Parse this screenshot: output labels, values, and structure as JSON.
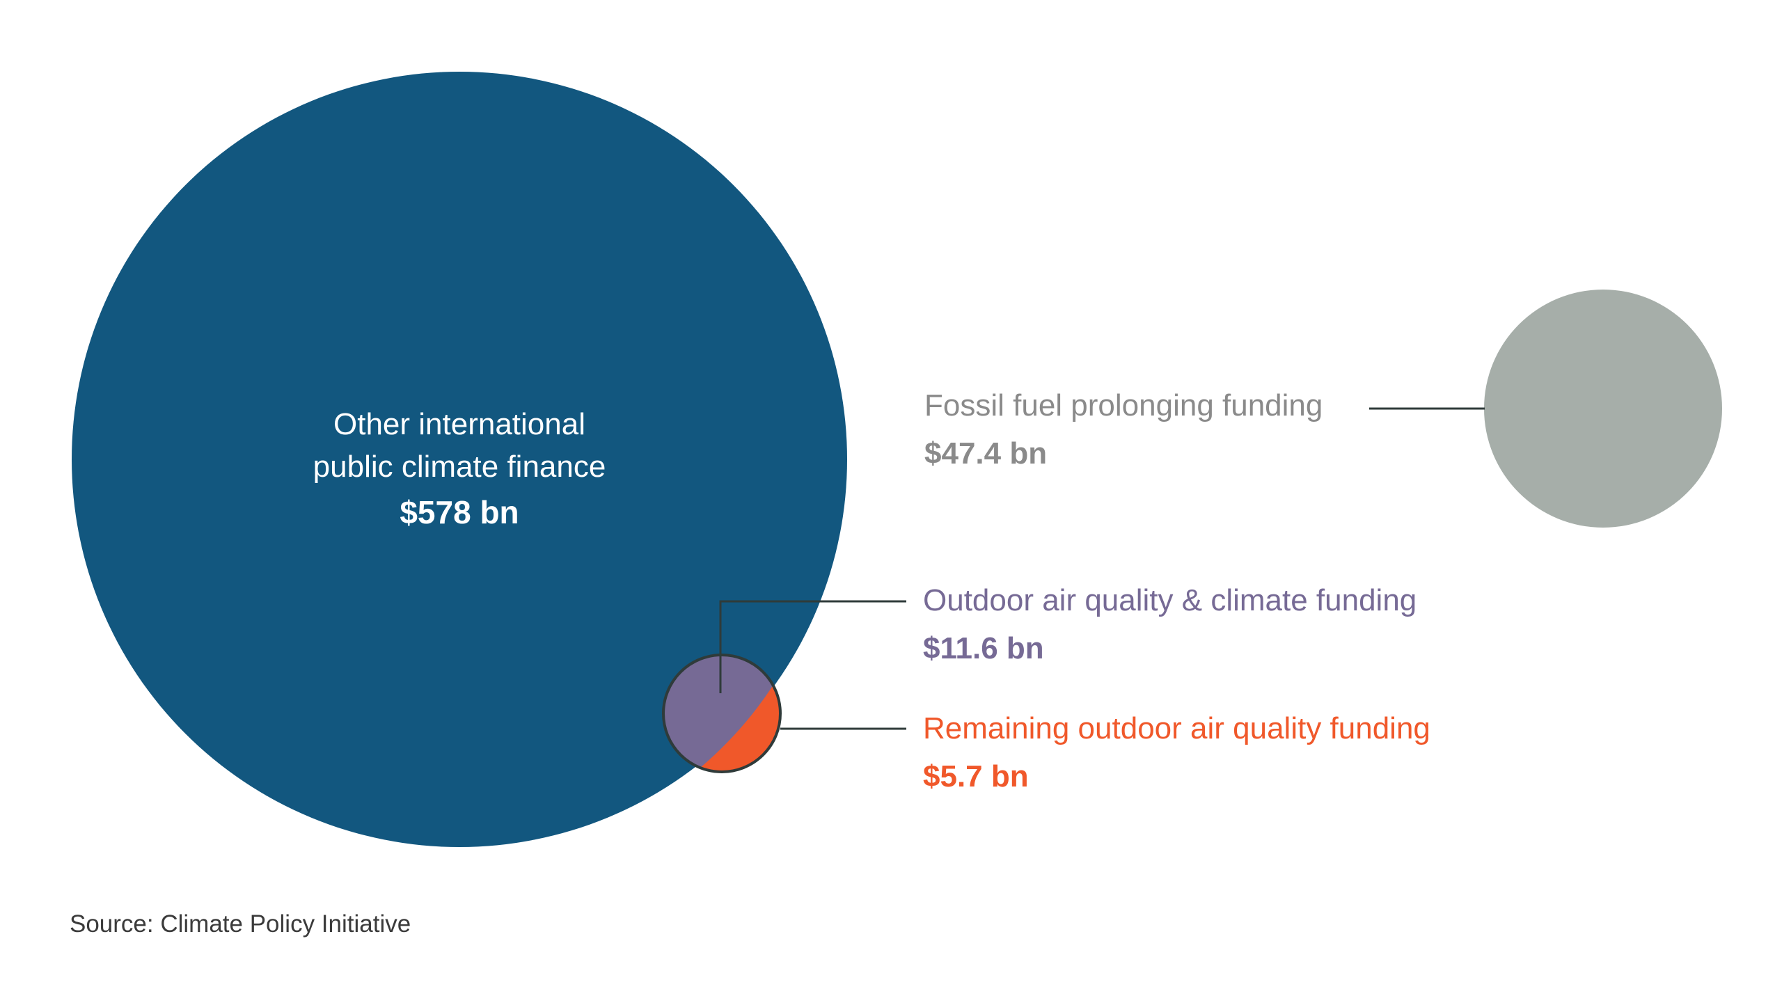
{
  "chart_data": {
    "type": "bubble",
    "unit": "bn",
    "series": [
      {
        "name": "Other international public climate finance",
        "name_lines": [
          "Other international",
          "public climate finance"
        ],
        "value": 578,
        "value_label": "$578 bn",
        "color": "#12577f",
        "label_color": "#ffffff"
      },
      {
        "name": "Fossil fuel prolonging funding",
        "name_lines": [
          "Fossil fuel prolonging funding"
        ],
        "value": 47.4,
        "value_label": "$47.4 bn",
        "color": "#a6aea9",
        "label_color": "#8a8a8a"
      },
      {
        "name": "Outdoor air quality & climate funding",
        "name_lines": [
          "Outdoor air quality & climate funding"
        ],
        "value": 11.6,
        "value_label": "$11.6 bn",
        "color": "#766a95",
        "label_color": "#766a95"
      },
      {
        "name": "Remaining outdoor air quality funding",
        "name_lines": [
          "Remaining outdoor air quality funding"
        ],
        "value": 5.7,
        "value_label": "$5.7 bn",
        "color": "#f0582a",
        "label_color": "#f0582a"
      }
    ],
    "leader_color": "#2f3b3a"
  },
  "source": "Source: Climate Policy Initiative"
}
